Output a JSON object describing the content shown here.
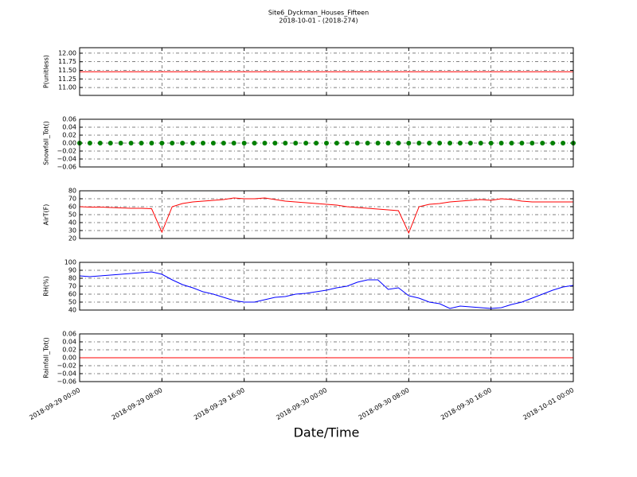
{
  "title": "Site6_Dyckman_Houses_Fifteen",
  "subtitle": "2018-10-01 - (2018-274)",
  "xlabel": "Date/Time",
  "x": [
    "2018-09-29 00:00",
    "2018-09-29 01:00",
    "2018-09-29 02:00",
    "2018-09-29 03:00",
    "2018-09-29 04:00",
    "2018-09-29 05:00",
    "2018-09-29 06:00",
    "2018-09-29 07:00",
    "2018-09-29 08:00",
    "2018-09-29 09:00",
    "2018-09-29 10:00",
    "2018-09-29 11:00",
    "2018-09-29 12:00",
    "2018-09-29 13:00",
    "2018-09-29 14:00",
    "2018-09-29 15:00",
    "2018-09-29 16:00",
    "2018-09-29 17:00",
    "2018-09-29 18:00",
    "2018-09-29 19:00",
    "2018-09-29 20:00",
    "2018-09-29 21:00",
    "2018-09-29 22:00",
    "2018-09-29 23:00",
    "2018-09-30 00:00",
    "2018-09-30 01:00",
    "2018-09-30 02:00",
    "2018-09-30 03:00",
    "2018-09-30 04:00",
    "2018-09-30 05:00",
    "2018-09-30 06:00",
    "2018-09-30 07:00",
    "2018-09-30 08:00",
    "2018-09-30 09:00",
    "2018-09-30 10:00",
    "2018-09-30 11:00",
    "2018-09-30 12:00",
    "2018-09-30 13:00",
    "2018-09-30 14:00",
    "2018-09-30 15:00",
    "2018-09-30 16:00",
    "2018-09-30 17:00",
    "2018-09-30 18:00",
    "2018-09-30 19:00",
    "2018-09-30 20:00",
    "2018-09-30 21:00",
    "2018-09-30 22:00",
    "2018-09-30 23:00",
    "2018-10-01 00:00"
  ],
  "xlim": [
    "2018-09-29 00:00",
    "2018-10-01 00:00"
  ],
  "xticks": [
    "2018-09-29 00:00",
    "2018-09-29 08:00",
    "2018-09-29 16:00",
    "2018-09-30 00:00",
    "2018-09-30 08:00",
    "2018-09-30 16:00",
    "2018-10-01 00:00"
  ],
  "chart_data": [
    {
      "type": "line",
      "ylabel": "P(unitless)",
      "color": "#ff0000",
      "grid": true,
      "values": [
        11.46,
        11.46,
        11.46,
        11.46,
        11.46,
        11.46,
        11.46,
        11.46,
        11.46,
        11.46,
        11.46,
        11.46,
        11.46,
        11.46,
        11.46,
        11.46,
        11.46,
        11.46,
        11.46,
        11.46,
        11.46,
        11.46,
        11.46,
        11.46,
        11.46,
        11.46,
        11.46,
        11.46,
        11.46,
        11.46,
        11.46,
        11.46,
        11.46,
        11.46,
        11.46,
        11.46,
        11.46,
        11.46,
        11.46,
        11.46,
        11.46,
        11.46,
        11.46,
        11.46,
        11.46,
        11.46,
        11.46,
        11.46,
        11.46
      ],
      "ylim": [
        10.77,
        12.16
      ],
      "yticks": [
        {
          "value": 11,
          "label": "11.00"
        },
        11.25,
        {
          "value": 11.5,
          "label": "11.50"
        },
        11.75,
        {
          "value": 12,
          "label": "12.00"
        }
      ]
    },
    {
      "type": "scatter",
      "ylabel": "Snowfall_Tot()",
      "color": "#008000",
      "grid": true,
      "values": [
        0,
        0,
        0,
        0,
        0,
        0,
        0,
        0,
        0,
        0,
        0,
        0,
        0,
        0,
        0,
        0,
        0,
        0,
        0,
        0,
        0,
        0,
        0,
        0,
        0,
        0,
        0,
        0,
        0,
        0,
        0,
        0,
        0,
        0,
        0,
        0,
        0,
        0,
        0,
        0,
        0,
        0,
        0,
        0,
        0,
        0,
        0,
        0,
        0
      ],
      "ylim": [
        -0.06,
        0.06
      ],
      "yticks": [
        {
          "value": -0.06,
          "label": "−0.06"
        },
        {
          "value": -0.04,
          "label": "−0.04"
        },
        {
          "value": -0.02,
          "label": "−0.02"
        },
        {
          "value": 0,
          "label": "0.00"
        },
        0.02,
        0.04,
        0.06
      ]
    },
    {
      "type": "line",
      "ylabel": "AirT(F)",
      "color": "#ff0000",
      "grid": true,
      "values": [
        60,
        59.5,
        59.5,
        59,
        58.5,
        58,
        58,
        57.5,
        28,
        60,
        64,
        66,
        67,
        68,
        69,
        71,
        70,
        70,
        71,
        69,
        67,
        66,
        65,
        64,
        63,
        62,
        60,
        59,
        58,
        57,
        56,
        55,
        27,
        60,
        63,
        64,
        66,
        67,
        68,
        69,
        68,
        70,
        69,
        67,
        66,
        66,
        66,
        66,
        66
      ],
      "ylim": [
        20,
        80
      ],
      "yticks": [
        20,
        30,
        40,
        50,
        60,
        70,
        80
      ]
    },
    {
      "type": "line",
      "ylabel": "RH(%)",
      "color": "#0000ff",
      "grid": true,
      "values": [
        83,
        82,
        83,
        84,
        85,
        86,
        87,
        88,
        85,
        78,
        72,
        68,
        63,
        60,
        56,
        52,
        50,
        50,
        53,
        56,
        57,
        60,
        61,
        63,
        65,
        68,
        70,
        75,
        78,
        78,
        66,
        68,
        58,
        55,
        50,
        48,
        42,
        45,
        44,
        43,
        42,
        43,
        47,
        50,
        55,
        60,
        65,
        69,
        71
      ],
      "ylim": [
        40,
        100
      ],
      "yticks": [
        40,
        50,
        60,
        70,
        80,
        90,
        100
      ]
    },
    {
      "type": "line",
      "ylabel": "Rainfall_Tot()",
      "color": "#ff0000",
      "grid": true,
      "values": [
        0,
        0,
        0,
        0,
        0,
        0,
        0,
        0,
        0,
        0,
        0,
        0,
        0,
        0,
        0,
        0,
        0,
        0,
        0,
        0,
        0,
        0,
        0,
        0,
        0,
        0,
        0,
        0,
        0,
        0,
        0,
        0,
        0,
        0,
        0,
        0,
        0,
        0,
        0,
        0,
        0,
        0,
        0,
        0,
        0,
        0,
        0,
        0,
        0
      ],
      "ylim": [
        -0.06,
        0.06
      ],
      "yticks": [
        {
          "value": -0.06,
          "label": "−0.06"
        },
        {
          "value": -0.04,
          "label": "−0.04"
        },
        {
          "value": -0.02,
          "label": "−0.02"
        },
        {
          "value": 0,
          "label": "0.00"
        },
        0.02,
        0.04,
        0.06
      ]
    }
  ]
}
